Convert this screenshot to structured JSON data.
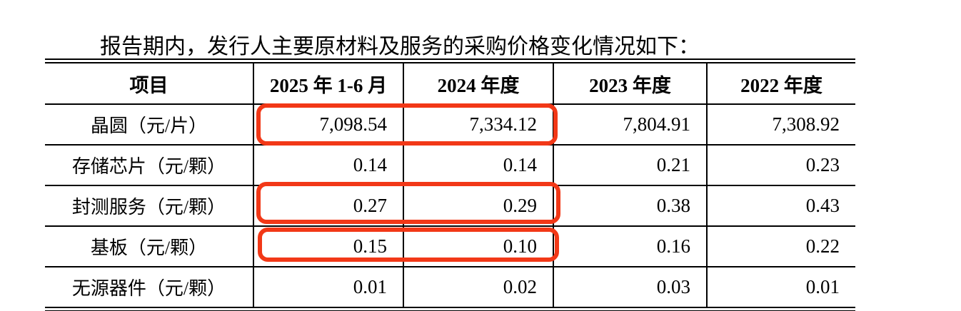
{
  "intro_text": "报告期内，发行人主要原材料及服务的采购价格变化情况如下：",
  "table": {
    "columns": [
      "项目",
      "2025 年 1-6 月",
      "2024 年度",
      "2023 年度",
      "2022 年度"
    ],
    "rows": [
      {
        "label": "晶圆（元/片）",
        "values": [
          "7,098.54",
          "7,334.12",
          "7,804.91",
          "7,308.92"
        ]
      },
      {
        "label": "存储芯片（元/颗）",
        "values": [
          "0.14",
          "0.14",
          "0.21",
          "0.23"
        ]
      },
      {
        "label": "封测服务（元/颗）",
        "values": [
          "0.27",
          "0.29",
          "0.38",
          "0.43"
        ]
      },
      {
        "label": "基板（元/颗）",
        "values": [
          "0.15",
          "0.10",
          "0.16",
          "0.22"
        ]
      },
      {
        "label": "无源器件（元/颗）",
        "values": [
          "0.01",
          "0.02",
          "0.03",
          "0.01"
        ]
      }
    ]
  },
  "annotations": {
    "highlight_color": "#f23817",
    "boxes": [
      "wafer-2025h1-2024-highlight",
      "assembly-test-2025h1-2024-highlight",
      "substrate-2025h1-2024-highlight"
    ]
  }
}
